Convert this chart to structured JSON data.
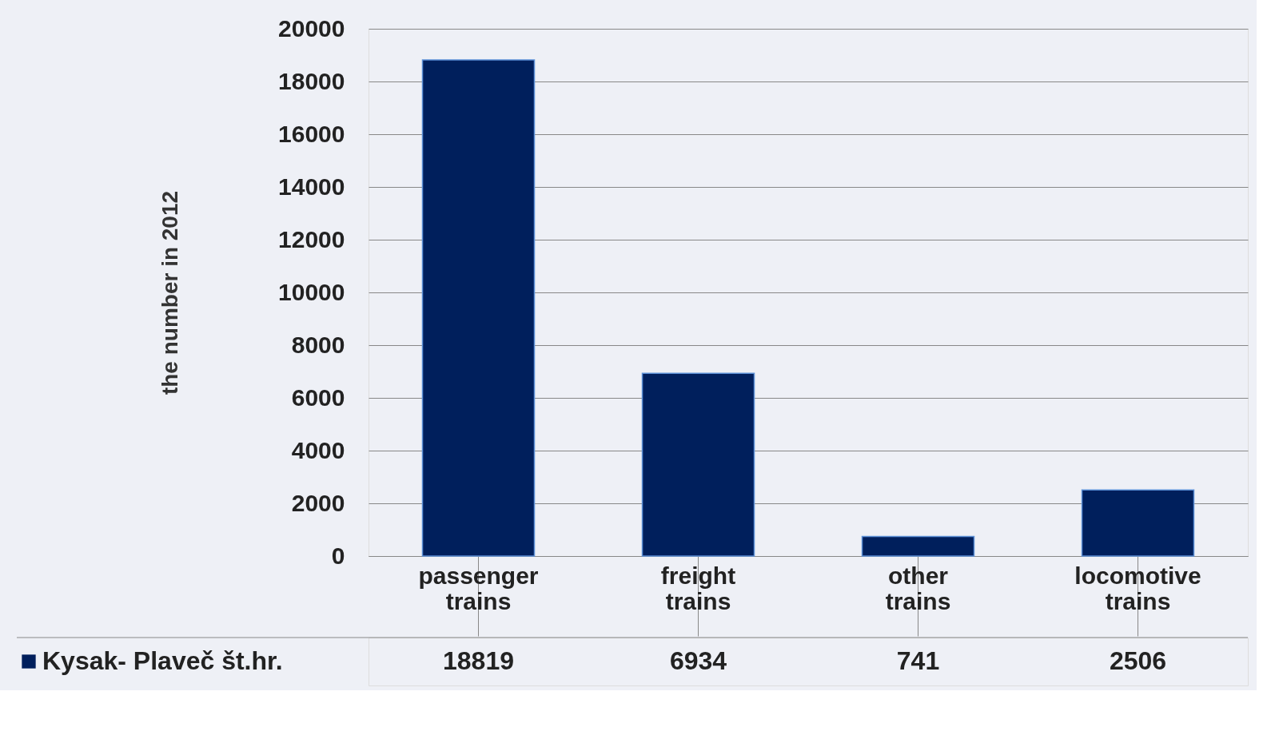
{
  "chart_data": {
    "type": "bar",
    "ylabel": "the number in 2012",
    "categories": [
      "passenger trains",
      "freight trains",
      "other trains",
      "locomotive trains"
    ],
    "series": [
      {
        "name": "Kysak- Plaveč št.hr.",
        "color": "#001f5c",
        "values": [
          18819,
          6934,
          741,
          2506
        ]
      }
    ],
    "ylim": [
      0,
      20000
    ],
    "yticks": [
      0,
      2000,
      4000,
      6000,
      8000,
      10000,
      12000,
      14000,
      16000,
      18000,
      20000
    ],
    "grid": "y",
    "data_labels": true,
    "legend": "bottom left"
  }
}
